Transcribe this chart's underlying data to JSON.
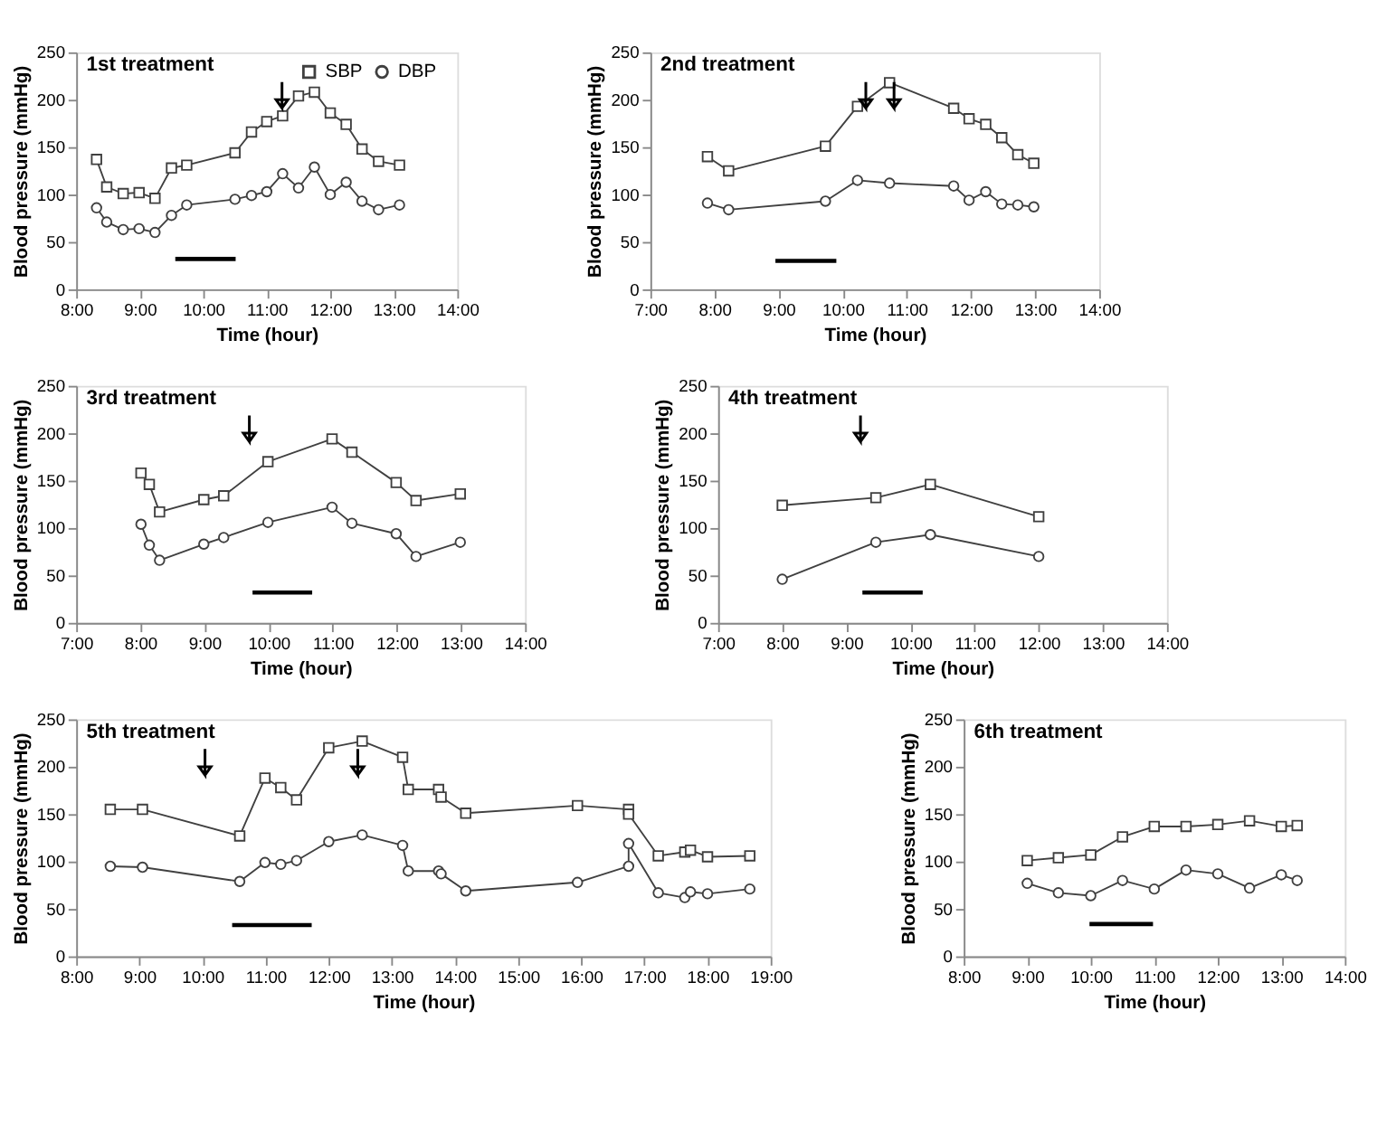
{
  "chart_data": [
    {
      "type": "line",
      "title": "1st treatment",
      "xlabel": "Time (hour)",
      "ylabel": "Blood pressure (mmHg)",
      "xlim": [
        8,
        14
      ],
      "ylim": [
        0,
        250
      ],
      "xticks": [
        {
          "value": 8,
          "label": "8:00"
        },
        {
          "value": 9,
          "label": "9:00"
        },
        {
          "value": 10,
          "label": "10:00"
        },
        {
          "value": 11,
          "label": "11:00"
        },
        {
          "value": 12,
          "label": "12:00"
        },
        {
          "value": 13,
          "label": "13:00"
        },
        {
          "value": 14,
          "label": "14:00"
        }
      ],
      "yticks": [
        0,
        50,
        100,
        150,
        200,
        250
      ],
      "grid": false,
      "legend": "top right",
      "series": [
        {
          "name": "SBP",
          "color": "#404040",
          "marker": "square",
          "x": [
            8.32,
            8.48,
            8.74,
            8.99,
            9.24,
            9.5,
            9.74,
            10.5,
            10.76,
            11.0,
            11.25,
            11.5,
            11.75,
            12.0,
            12.25,
            12.5,
            12.76,
            13.09
          ],
          "values": [
            137,
            108,
            101,
            102,
            96,
            128,
            131,
            144,
            166,
            177,
            183,
            204,
            208,
            186,
            174,
            148,
            135,
            131
          ]
        },
        {
          "name": "DBP",
          "color": "#404040",
          "marker": "circle",
          "x": [
            8.32,
            8.48,
            8.74,
            8.99,
            9.24,
            9.5,
            9.74,
            10.5,
            10.76,
            11.0,
            11.25,
            11.5,
            11.75,
            12.0,
            12.25,
            12.5,
            12.76,
            13.09
          ],
          "values": [
            86,
            71,
            63,
            64,
            60,
            78,
            89,
            95,
            99,
            103,
            122,
            107,
            129,
            100,
            113,
            93,
            84,
            89
          ]
        },
        {
          "color": "#000000",
          "marker": "none",
          "x": [
            9.56,
            10.51
          ],
          "values": [
            32,
            32
          ]
        }
      ],
      "ref_lines": [
        {
          "axis": "x",
          "value": 11.24
        }
      ]
    },
    {
      "type": "line",
      "title": "2nd treatment",
      "xlabel": "Time (hour)",
      "ylabel": "Blood pressure (mmHg)",
      "xlim": [
        7,
        14
      ],
      "ylim": [
        0,
        250
      ],
      "xticks": [
        {
          "value": 7,
          "label": "7:00"
        },
        {
          "value": 8,
          "label": "8:00"
        },
        {
          "value": 9,
          "label": "9:00"
        },
        {
          "value": 10,
          "label": "10:00"
        },
        {
          "value": 11,
          "label": "11:00"
        },
        {
          "value": 12,
          "label": "12:00"
        },
        {
          "value": 13,
          "label": "13:00"
        },
        {
          "value": 14,
          "label": "14:00"
        }
      ],
      "yticks": [
        0,
        50,
        100,
        150,
        200,
        250
      ],
      "grid": false,
      "legend": false,
      "series": [
        {
          "color": "#404040",
          "marker": "square",
          "x": [
            7.89,
            8.22,
            9.73,
            10.23,
            10.73,
            11.73,
            11.97,
            12.23,
            12.48,
            12.73,
            12.98
          ],
          "values": [
            140,
            125,
            151,
            193,
            218,
            191,
            180,
            174,
            160,
            142,
            133
          ]
        },
        {
          "color": "#404040",
          "marker": "circle",
          "x": [
            7.89,
            8.22,
            9.73,
            10.23,
            10.73,
            11.73,
            11.97,
            12.23,
            12.48,
            12.73,
            12.98
          ],
          "values": [
            91,
            84,
            93,
            115,
            112,
            109,
            94,
            103,
            90,
            89,
            87
          ]
        },
        {
          "color": "#000000",
          "marker": "none",
          "x": [
            8.95,
            9.9
          ],
          "values": [
            30,
            30
          ]
        }
      ],
      "ref_lines": [
        {
          "axis": "x",
          "value": 10.36
        },
        {
          "axis": "x",
          "value": 10.8
        }
      ]
    },
    {
      "type": "line",
      "title": "3rd treatment",
      "xlabel": "Time (hour)",
      "ylabel": "Blood pressure (mmHg)",
      "xlim": [
        7,
        14
      ],
      "ylim": [
        0,
        250
      ],
      "xticks": [
        {
          "value": 7,
          "label": "7:00"
        },
        {
          "value": 8,
          "label": "8:00"
        },
        {
          "value": 9,
          "label": "9:00"
        },
        {
          "value": 10,
          "label": "10:00"
        },
        {
          "value": 11,
          "label": "11:00"
        },
        {
          "value": 12,
          "label": "12:00"
        },
        {
          "value": 13,
          "label": "13:00"
        },
        {
          "value": 14,
          "label": "14:00"
        }
      ],
      "yticks": [
        0,
        50,
        100,
        150,
        200,
        250
      ],
      "grid": false,
      "legend": false,
      "series": [
        {
          "color": "#404040",
          "marker": "square",
          "x": [
            8.01,
            8.14,
            8.3,
            8.99,
            9.3,
            9.99,
            10.99,
            11.3,
            11.99,
            12.3,
            12.99
          ],
          "values": [
            158,
            146,
            117,
            130,
            134,
            170,
            194,
            180,
            148,
            129,
            136
          ]
        },
        {
          "color": "#404040",
          "marker": "circle",
          "x": [
            8.01,
            8.14,
            8.3,
            8.99,
            9.3,
            9.99,
            10.99,
            11.3,
            11.99,
            12.3,
            12.99
          ],
          "values": [
            104,
            82,
            66,
            83,
            90,
            106,
            122,
            105,
            94,
            70,
            85
          ]
        },
        {
          "color": "#000000",
          "marker": "none",
          "x": [
            9.75,
            10.68
          ],
          "values": [
            32,
            32
          ]
        }
      ],
      "ref_lines": [
        {
          "axis": "x",
          "value": 9.7
        }
      ]
    },
    {
      "type": "line",
      "title": "4th treatment",
      "xlabel": "Time (hour)",
      "ylabel": "Blood pressure (mmHg)",
      "xlim": [
        7,
        14
      ],
      "ylim": [
        0,
        250
      ],
      "xticks": [
        {
          "value": 7,
          "label": "7:00"
        },
        {
          "value": 8,
          "label": "8:00"
        },
        {
          "value": 9,
          "label": "9:00"
        },
        {
          "value": 10,
          "label": "10:00"
        },
        {
          "value": 11,
          "label": "11:00"
        },
        {
          "value": 12,
          "label": "12:00"
        },
        {
          "value": 13,
          "label": "13:00"
        },
        {
          "value": 14,
          "label": "14:00"
        }
      ],
      "yticks": [
        0,
        50,
        100,
        150,
        200,
        250
      ],
      "grid": false,
      "legend": false,
      "series": [
        {
          "color": "#404040",
          "marker": "square",
          "x": [
            8.0,
            9.46,
            10.31,
            12.0
          ],
          "values": [
            124,
            132,
            146,
            112
          ]
        },
        {
          "color": "#404040",
          "marker": "circle",
          "x": [
            8.0,
            9.46,
            10.31,
            12.0
          ],
          "values": [
            46,
            85,
            93,
            70
          ]
        },
        {
          "color": "#000000",
          "marker": "none",
          "x": [
            9.25,
            10.19
          ],
          "values": [
            32,
            32
          ]
        }
      ],
      "ref_lines": [
        {
          "axis": "x",
          "value": 9.22
        }
      ]
    },
    {
      "type": "line",
      "title": "5th treatment",
      "xlabel": "Time (hour)",
      "ylabel": "Blood pressure (mmHg)",
      "xlim": [
        8,
        19
      ],
      "ylim": [
        0,
        250
      ],
      "xticks": [
        {
          "value": 8,
          "label": "8:00"
        },
        {
          "value": 9,
          "label": "9:00"
        },
        {
          "value": 10,
          "label": "10:00"
        },
        {
          "value": 11,
          "label": "11:00"
        },
        {
          "value": 12,
          "label": "12:00"
        },
        {
          "value": 13,
          "label": "13:00"
        },
        {
          "value": 14,
          "label": "14:00"
        },
        {
          "value": 15,
          "label": "15:00"
        },
        {
          "value": 16,
          "label": "16:00"
        },
        {
          "value": 17,
          "label": "17:00"
        },
        {
          "value": 18,
          "label": "18:00"
        },
        {
          "value": 19,
          "label": "19:00"
        }
      ],
      "yticks": [
        0,
        50,
        100,
        150,
        200,
        250
      ],
      "grid": false,
      "legend": false,
      "series": [
        {
          "color": "#404040",
          "marker": "square",
          "x": [
            8.54,
            9.05,
            10.59,
            10.99,
            11.24,
            11.49,
            12.0,
            12.53,
            13.17,
            13.26,
            13.74,
            13.78,
            14.17,
            15.94,
            16.75,
            16.75,
            17.22,
            17.64,
            17.73,
            18.0,
            18.67
          ],
          "values": [
            155,
            155,
            127,
            188,
            178,
            165,
            220,
            227,
            210,
            176,
            176,
            168,
            151,
            159,
            155,
            150,
            106,
            110,
            112,
            105,
            106
          ]
        },
        {
          "color": "#404040",
          "marker": "circle",
          "x": [
            8.54,
            9.05,
            10.59,
            10.99,
            11.24,
            11.49,
            12.0,
            12.53,
            13.17,
            13.26,
            13.74,
            13.78,
            14.17,
            15.94,
            16.75,
            16.75,
            17.22,
            17.64,
            17.73,
            18.0,
            18.67
          ],
          "values": [
            95,
            94,
            79,
            99,
            97,
            101,
            121,
            128,
            117,
            90,
            90,
            87,
            69,
            78,
            95,
            119,
            67,
            62,
            68,
            66,
            71
          ]
        },
        {
          "color": "#000000",
          "marker": "none",
          "x": [
            10.47,
            11.73
          ],
          "values": [
            33,
            33
          ]
        }
      ],
      "ref_lines": [
        {
          "axis": "x",
          "value": 10.04
        },
        {
          "axis": "x",
          "value": 12.46
        }
      ]
    },
    {
      "type": "line",
      "title": "6th treatment",
      "xlabel": "Time (hour)",
      "ylabel": "Blood pressure (mmHg)",
      "xlim": [
        8,
        14
      ],
      "ylim": [
        0,
        250
      ],
      "xticks": [
        {
          "value": 8,
          "label": "8:00"
        },
        {
          "value": 9,
          "label": "9:00"
        },
        {
          "value": 10,
          "label": "10:00"
        },
        {
          "value": 11,
          "label": "11:00"
        },
        {
          "value": 12,
          "label": "12:00"
        },
        {
          "value": 13,
          "label": "13:00"
        },
        {
          "value": 14,
          "label": "14:00"
        }
      ],
      "yticks": [
        0,
        50,
        100,
        150,
        200,
        250
      ],
      "grid": false,
      "legend": false,
      "series": [
        {
          "color": "#404040",
          "marker": "square",
          "x": [
            9.0,
            9.49,
            10.0,
            10.5,
            11.0,
            11.5,
            12.0,
            12.5,
            13.0,
            13.25
          ],
          "values": [
            101,
            104,
            107,
            126,
            137,
            137,
            139,
            143,
            137,
            138
          ]
        },
        {
          "color": "#404040",
          "marker": "circle",
          "x": [
            9.0,
            9.49,
            10.0,
            10.5,
            11.0,
            11.5,
            12.0,
            12.5,
            13.0,
            13.25
          ],
          "values": [
            77,
            67,
            64,
            80,
            71,
            91,
            87,
            72,
            86,
            80
          ]
        },
        {
          "color": "#000000",
          "marker": "none",
          "x": [
            9.98,
            10.98
          ],
          "values": [
            34,
            34
          ]
        }
      ]
    }
  ]
}
